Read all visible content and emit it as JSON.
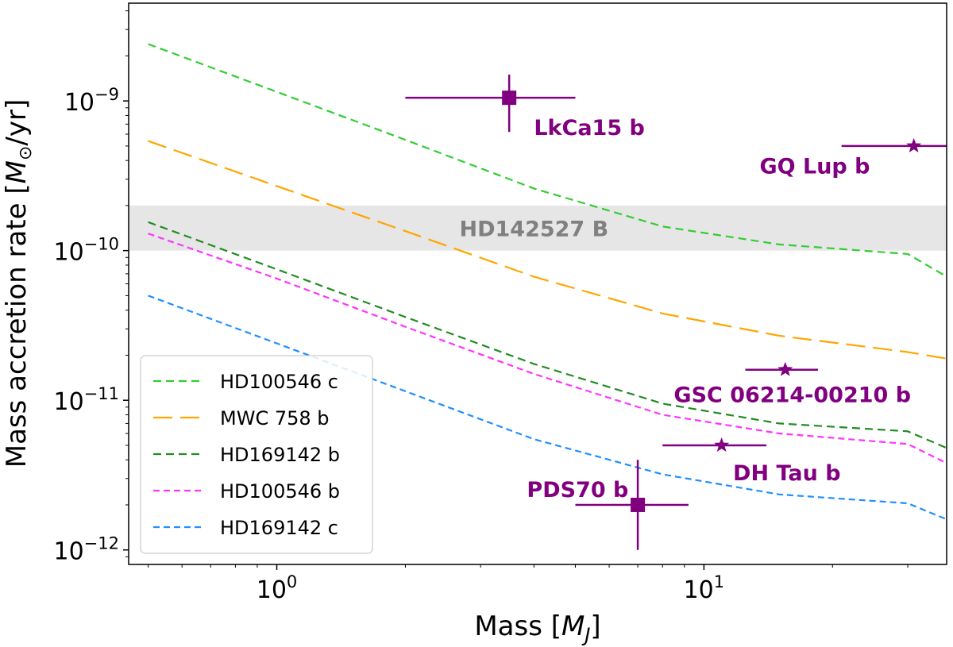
{
  "chart_data": {
    "type": "line",
    "xscale": "log",
    "yscale": "log",
    "xlim": [
      0.45,
      37
    ],
    "ylim": [
      8e-13,
      4.5e-09
    ],
    "xlabel_main": "Mass [",
    "xlabel_sym": "M",
    "xlabel_sub": "J",
    "xlabel_end": "]",
    "ylabel_main": "Mass accretion rate [",
    "ylabel_sym": "M",
    "ylabel_sub": "⊙",
    "ylabel_end": "/yr]",
    "x_ticks": [
      {
        "value": 1,
        "base": "10",
        "exp": "0"
      },
      {
        "value": 10,
        "base": "10",
        "exp": "1"
      }
    ],
    "y_ticks": [
      {
        "value": 1e-09,
        "base": "10",
        "exp": "−9"
      },
      {
        "value": 1e-10,
        "base": "10",
        "exp": "−10"
      },
      {
        "value": 1e-11,
        "base": "10",
        "exp": "−11"
      },
      {
        "value": 1e-12,
        "base": "10",
        "exp": "−12"
      }
    ],
    "band": {
      "label": "HD142527 B",
      "ymin": 1e-10,
      "ymax": 2e-10,
      "color": "#e6e6e6",
      "text_color": "#808080",
      "label_x": 4.0
    },
    "series": [
      {
        "name": "HD100546 c",
        "color": "#33cc33",
        "dash": "10,6",
        "x": [
          0.5,
          1,
          2,
          4,
          8,
          15,
          30,
          37
        ],
        "y": [
          2.4e-09,
          1.15e-09,
          5.5e-10,
          2.6e-10,
          1.45e-10,
          1.1e-10,
          9.5e-11,
          6.7e-11
        ]
      },
      {
        "name": "MWC 758 b",
        "color": "#ffa500",
        "dash": "24,10",
        "x": [
          0.5,
          1,
          2,
          4,
          8,
          15,
          30,
          37
        ],
        "y": [
          5.4e-10,
          2.7e-10,
          1.35e-10,
          6.7e-11,
          3.8e-11,
          2.7e-11,
          2.1e-11,
          1.9e-11
        ]
      },
      {
        "name": "HD169142 b",
        "color": "#228b22",
        "dash": "10,6",
        "x": [
          0.5,
          1,
          2,
          4,
          8,
          15,
          30,
          37
        ],
        "y": [
          1.55e-10,
          7.5e-11,
          3.6e-11,
          1.75e-11,
          9.5e-12,
          7e-12,
          6.2e-12,
          4.8e-12
        ]
      },
      {
        "name": "HD100546 b",
        "color": "#ff33ff",
        "dash": "8,5",
        "x": [
          0.5,
          1,
          2,
          4,
          8,
          15,
          30,
          37
        ],
        "y": [
          1.3e-10,
          6.5e-11,
          3.1e-11,
          1.5e-11,
          8e-12,
          6e-12,
          5.1e-12,
          3.8e-12
        ]
      },
      {
        "name": "HD169142 c",
        "color": "#1e90ff",
        "dash": "8,5",
        "x": [
          0.5,
          1,
          2,
          4,
          8,
          15,
          30,
          37
        ],
        "y": [
          5e-11,
          2.4e-11,
          1.15e-11,
          5.5e-12,
          3.2e-12,
          2.35e-12,
          2.05e-12,
          1.6e-12
        ]
      }
    ],
    "objects": [
      {
        "name": "LkCa15 b",
        "marker": "square",
        "x": 3.5,
        "y": 1.05e-09,
        "xerr": [
          2.0,
          5.0
        ],
        "yerr": [
          6.2e-10,
          1.5e-09
        ],
        "label_x": 4.0,
        "label_y": 6.7e-10
      },
      {
        "name": "GQ Lup b",
        "marker": "star",
        "x": 31,
        "y": 5e-10,
        "xerr": [
          21,
          40
        ],
        "yerr": null,
        "label_x": 13.5,
        "label_y": 3.7e-10
      },
      {
        "name": "GSC 06214-00210 b",
        "marker": "star",
        "x": 15.5,
        "y": 1.6e-11,
        "xerr": [
          12.5,
          18.5
        ],
        "yerr": null,
        "label_x": 8.5,
        "label_y": 1.1e-11
      },
      {
        "name": "DH Tau b",
        "marker": "star",
        "x": 11,
        "y": 5e-12,
        "xerr": [
          8,
          14
        ],
        "yerr": null,
        "label_x": 11.7,
        "label_y": 3.3e-12
      },
      {
        "name": "PDS70 b",
        "marker": "square",
        "x": 7,
        "y": 2e-12,
        "xerr": [
          5,
          9.2
        ],
        "yerr": [
          1e-12,
          4e-12
        ],
        "label_x": 3.85,
        "label_y": 2.55e-12
      }
    ],
    "legend": {
      "position": "lower-left"
    }
  }
}
